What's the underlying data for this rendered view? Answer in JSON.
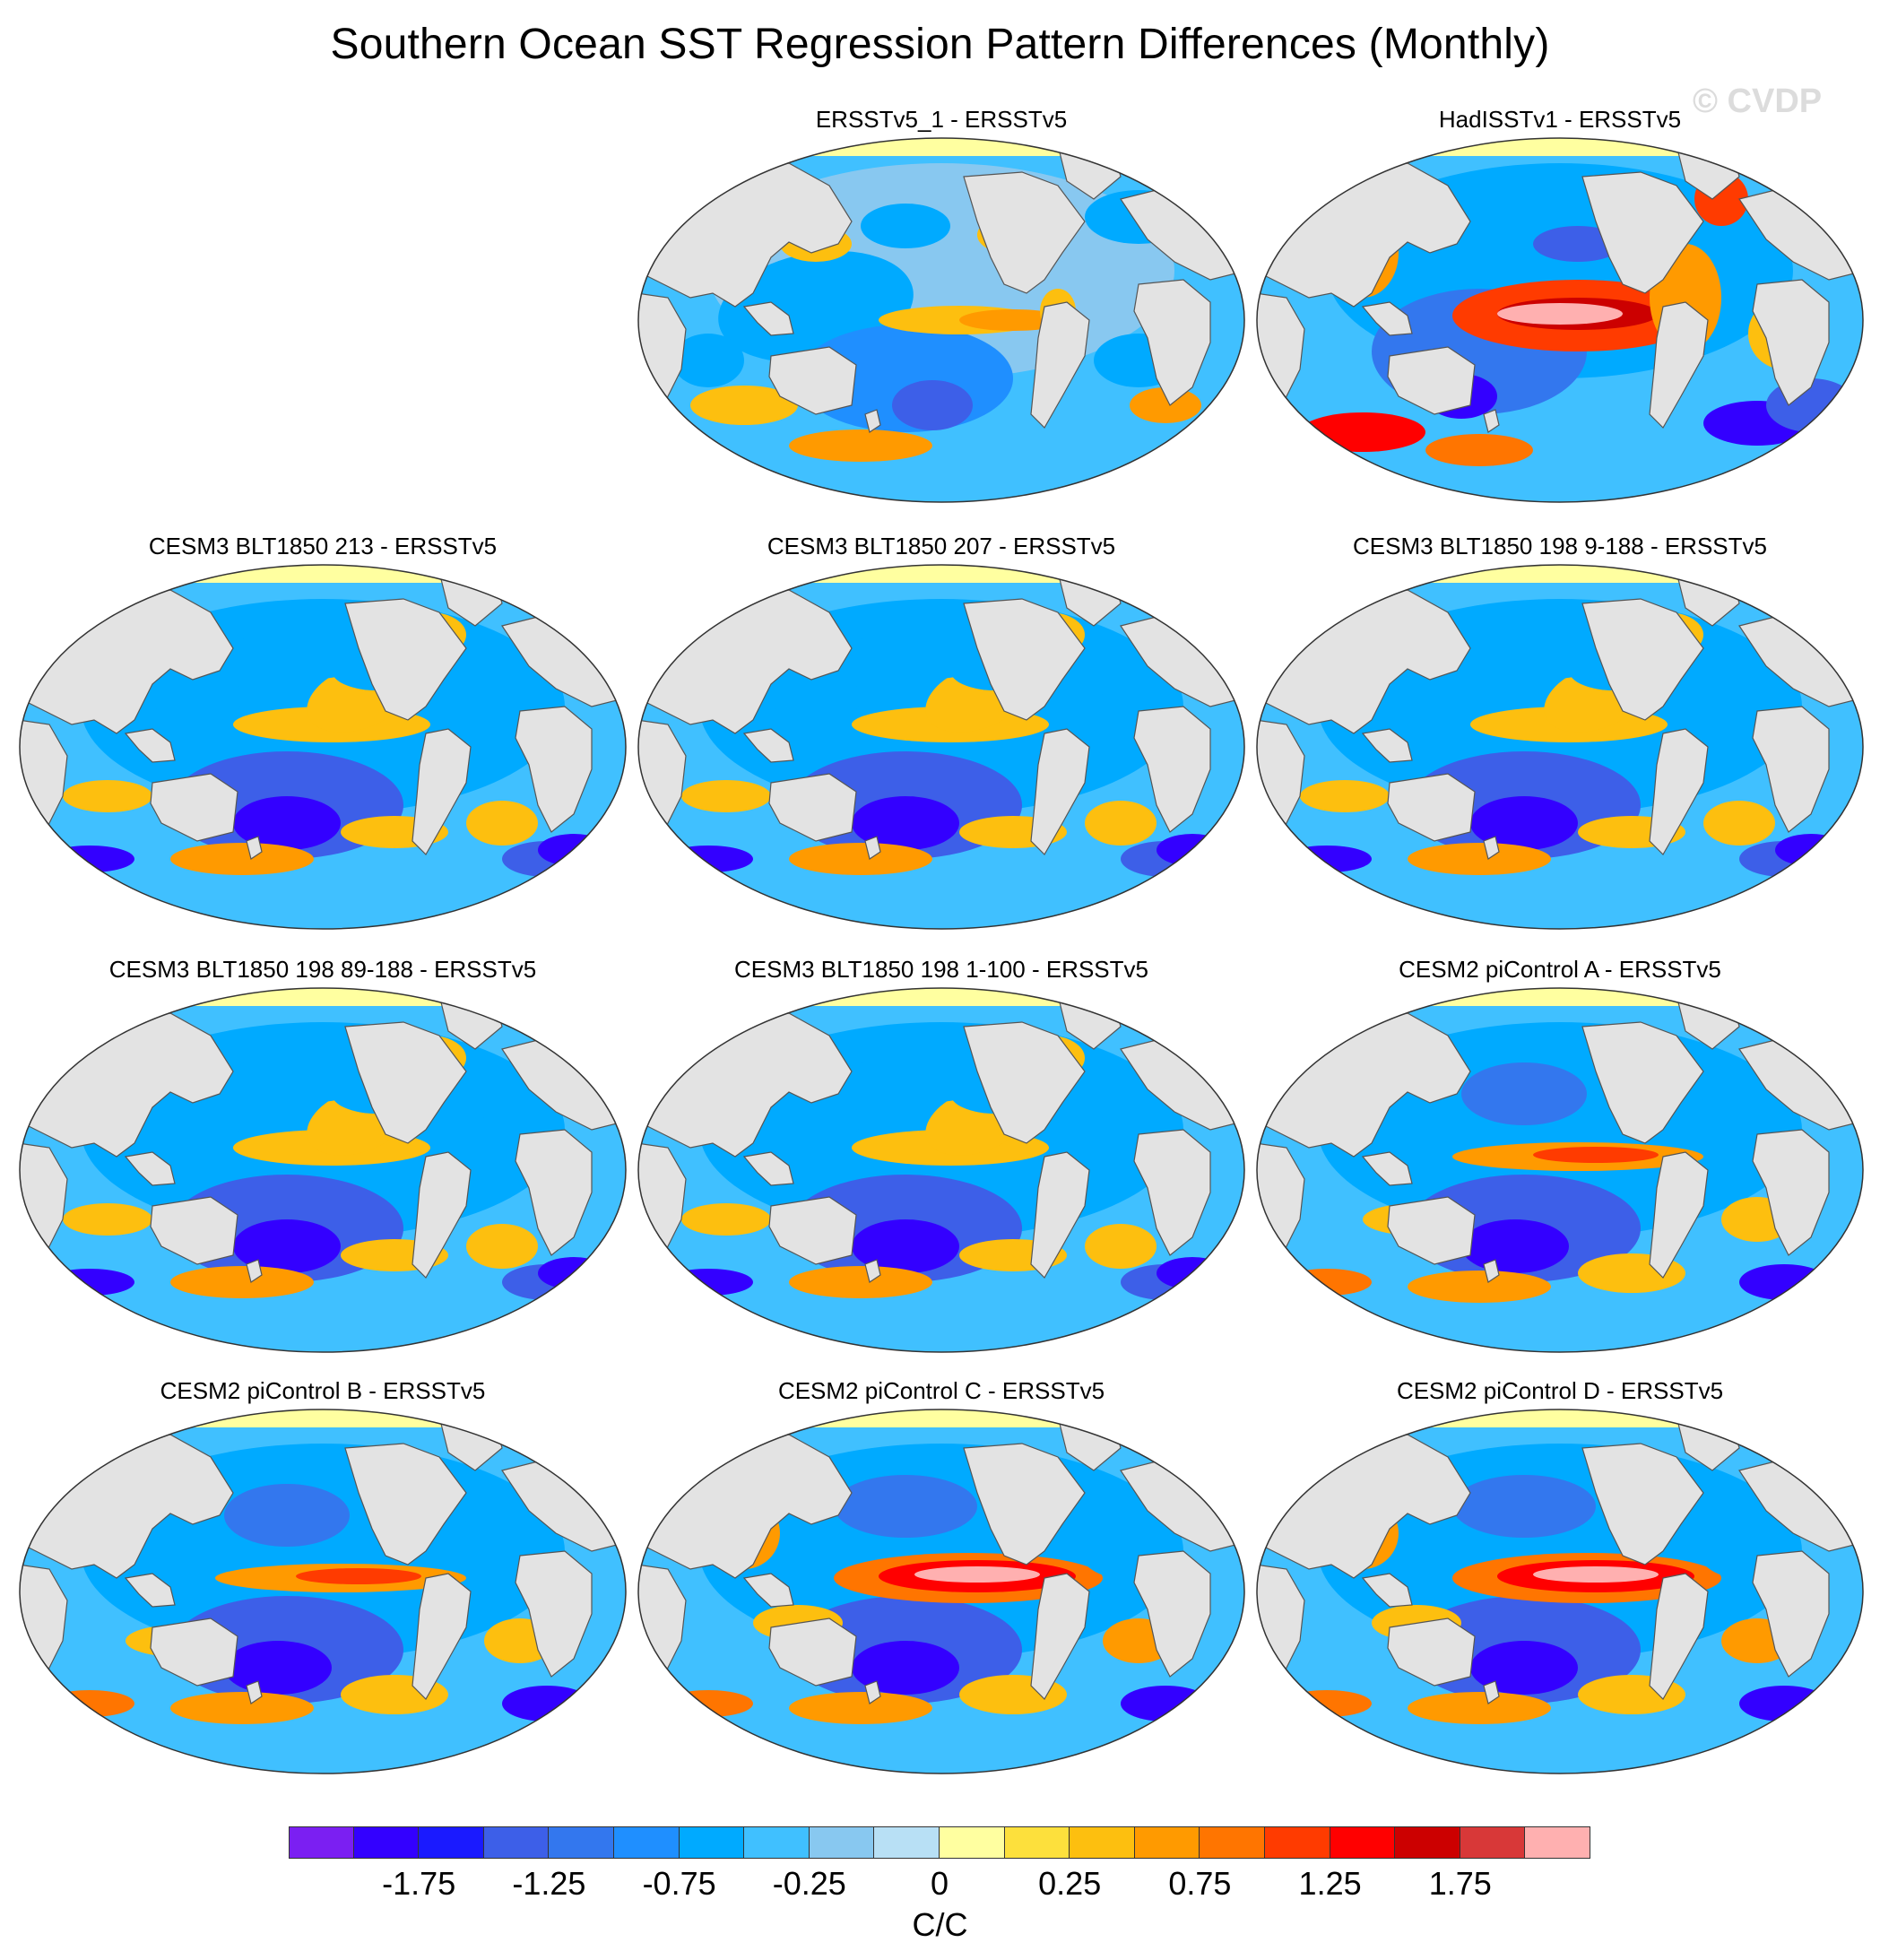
{
  "title": "Southern Ocean SST Regression Pattern Differences (Monthly)",
  "watermark": "© CVDP",
  "panels": [
    {
      "title": "ERSSTv5_1 - ERSSTv5",
      "pattern": "a"
    },
    {
      "title": "HadISSTv1 - ERSSTv5",
      "pattern": "b"
    },
    {
      "title": "CESM3 BLT1850 213 - ERSSTv5",
      "pattern": "c"
    },
    {
      "title": "CESM3 BLT1850 207 - ERSSTv5",
      "pattern": "c"
    },
    {
      "title": "CESM3 BLT1850 198 9-188 - ERSSTv5",
      "pattern": "c"
    },
    {
      "title": "CESM3 BLT1850 198 89-188 - ERSSTv5",
      "pattern": "c"
    },
    {
      "title": "CESM3 BLT1850 198 1-100 - ERSSTv5",
      "pattern": "c"
    },
    {
      "title": "CESM2 piControl A - ERSSTv5",
      "pattern": "d"
    },
    {
      "title": "CESM2 piControl B - ERSSTv5",
      "pattern": "d"
    },
    {
      "title": "CESM2 piControl C - ERSSTv5",
      "pattern": "e"
    },
    {
      "title": "CESM2 piControl D - ERSSTv5",
      "pattern": "e"
    }
  ],
  "colorbar": {
    "colors": [
      "#7b1ff2",
      "#3300ff",
      "#1a1aff",
      "#3d5fe8",
      "#3377ee",
      "#1f8fff",
      "#00aaff",
      "#40c0ff",
      "#88c8f0",
      "#b8e0f5",
      "#ffffa0",
      "#fde03c",
      "#fdbf0f",
      "#ff9a00",
      "#ff7500",
      "#ff3b00",
      "#ff0000",
      "#cc0000",
      "#d83838",
      "#ffb0b0"
    ],
    "tick_labels": [
      "-1.75",
      "-1.25",
      "-0.75",
      "-0.25",
      "0",
      "0.25",
      "0.75",
      "1.25",
      "1.75"
    ],
    "units": "C/C"
  }
}
